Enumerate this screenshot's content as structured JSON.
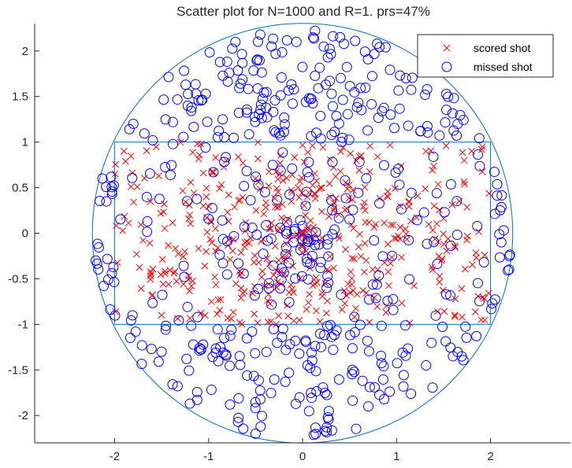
{
  "chart_data": {
    "type": "scatter",
    "title": "Scatter plot for N=1000 and R=1. prs=47%",
    "xlim": [
      -2.85,
      2.85
    ],
    "ylim": [
      -2.3,
      2.3
    ],
    "x_ticks": [
      -2,
      -1,
      0,
      1,
      2
    ],
    "x_tick_labels": [
      "-2",
      "-1",
      "0",
      "1",
      "2"
    ],
    "y_ticks": [
      -2,
      -1.5,
      -1,
      -0.5,
      0,
      0.5,
      1,
      1.5,
      2
    ],
    "y_tick_labels": [
      "-2",
      "-1.5",
      "-1",
      "-0.5",
      "0",
      "0.5",
      "1",
      "1.5",
      "2"
    ],
    "grid": false,
    "legend_position": "top-right",
    "boundary_circle": {
      "center": [
        0,
        0
      ],
      "radius": 2.236
    },
    "court_rectangle": {
      "x": [
        -2,
        2
      ],
      "y": [
        -1,
        1
      ]
    },
    "point_count": 1000,
    "scored_fraction": 0.47,
    "series": [
      {
        "name": "scored shot",
        "marker": "x",
        "color": "#ff0000",
        "count": 470,
        "sample_points": [
          [
            -1.9,
            0.9
          ],
          [
            -1.5,
            -0.9
          ],
          [
            0,
            0
          ],
          [
            0.2,
            -0.1
          ],
          [
            1.8,
            0.9
          ],
          [
            1.9,
            -0.95
          ],
          [
            -0.5,
            0.6
          ],
          [
            0.8,
            -0.4
          ],
          [
            -1.2,
            0.2
          ],
          [
            1.4,
            0.3
          ]
        ]
      },
      {
        "name": "missed shot",
        "marker": "o",
        "color": "#0000ff",
        "count": 530,
        "sample_points": [
          [
            -0.33,
            2.05
          ],
          [
            0.4,
            2.15
          ],
          [
            -1.8,
            1.2
          ],
          [
            1.1,
            1.7
          ],
          [
            -2.2,
            -0.3
          ],
          [
            2.2,
            -0.25
          ],
          [
            -0.5,
            -2.2
          ],
          [
            0.7,
            -1.9
          ],
          [
            -1.5,
            -1.3
          ],
          [
            1.6,
            -1.35
          ]
        ]
      }
    ]
  }
}
